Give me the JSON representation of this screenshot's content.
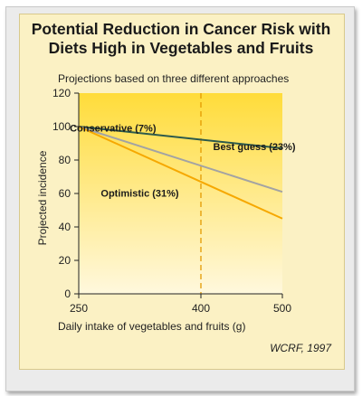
{
  "title_lines": [
    "Potential Reduction in Cancer Risk with",
    "Diets High in Vegetables and Fruits"
  ],
  "subtitle": "Projections based on three different approaches",
  "source": "WCRF, 1997",
  "colors": {
    "conservative": "#2c5a4c",
    "best_guess": "#a3a3a3",
    "optimistic": "#f6a800",
    "plot_bg_top": "#ffdc3a",
    "plot_bg_bottom": "#fff8dd",
    "frame": "#ebebeb"
  },
  "chart_data": {
    "type": "line",
    "xlabel": "Daily intake of vegetables and fruits (g)",
    "ylabel": "Projected incidence",
    "xlim": [
      250,
      500
    ],
    "ylim": [
      0,
      120
    ],
    "xticks": [
      250,
      400,
      500
    ],
    "yticks": [
      0,
      20,
      40,
      60,
      80,
      100,
      120
    ],
    "reference_line_x": 400,
    "series": [
      {
        "key": "conservative",
        "name": "Conservative (7%)",
        "x": [
          250,
          500
        ],
        "y": [
          100,
          87
        ]
      },
      {
        "key": "best_guess",
        "name": "Best guess (23%)",
        "x": [
          250,
          500
        ],
        "y": [
          100,
          61
        ]
      },
      {
        "key": "optimistic",
        "name": "Optimistic (31%)",
        "x": [
          250,
          500
        ],
        "y": [
          100,
          45
        ]
      }
    ]
  }
}
